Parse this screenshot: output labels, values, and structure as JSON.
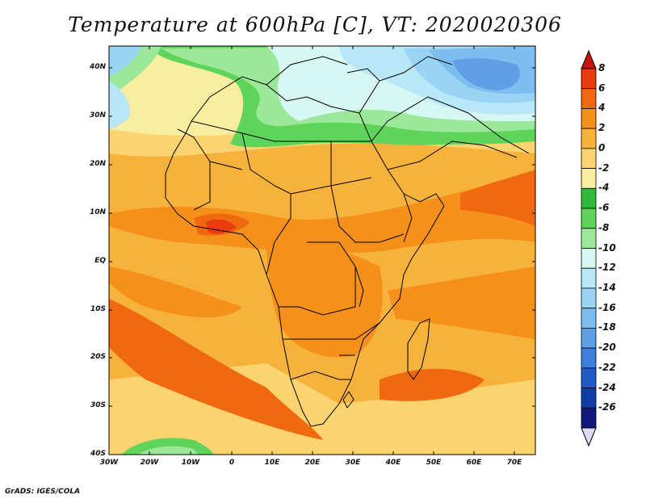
{
  "title": "Temperature at 600hPa [C], VT: 2020020306",
  "footer": "GrADS: IGES/COLA",
  "lat_labels": [
    "40N",
    "30N",
    "20N",
    "10N",
    "EQ",
    "10S",
    "20S",
    "30S",
    "40S"
  ],
  "lon_labels": [
    "30W",
    "20W",
    "10W",
    "0",
    "10E",
    "20E",
    "30E",
    "40E",
    "50E",
    "60E",
    "70E"
  ],
  "colorbar": {
    "labels": [
      "8",
      "6",
      "4",
      "2",
      "0",
      "-2",
      "-4",
      "-6",
      "-8",
      "-10",
      "-12",
      "-14",
      "-16",
      "-18",
      "-20",
      "-22",
      "-24",
      "-26"
    ],
    "colors": [
      "#c8140c",
      "#e83c0e",
      "#f0690f",
      "#f5901a",
      "#f7b23c",
      "#fbd470",
      "#f9eda0",
      "#2fba3b",
      "#5ed45b",
      "#9ce89a",
      "#d7f7f2",
      "#b8e8f8",
      "#9ad4f4",
      "#7dbdf0",
      "#5f9fe6",
      "#3f7fdc",
      "#2159c6",
      "#0f3ea6",
      "#111a7a",
      "#dcdcf8"
    ]
  },
  "map": {
    "lon_range": [
      -30,
      75
    ],
    "lat_range": [
      -40,
      45
    ]
  }
}
